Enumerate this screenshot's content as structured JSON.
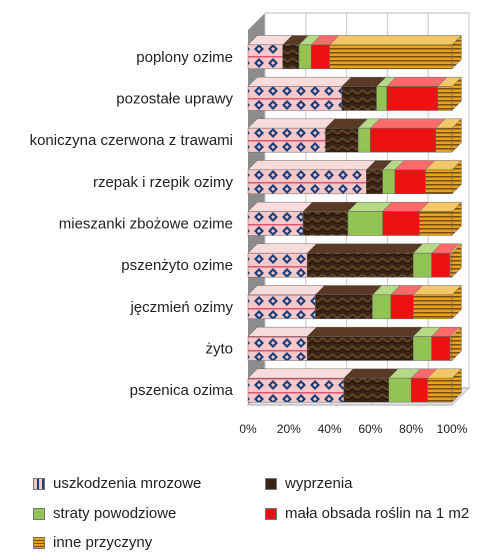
{
  "chart_data": {
    "type": "bar",
    "stacked": true,
    "orientation": "horizontal",
    "normalized": "percent",
    "categories": [
      "pszenica ozima",
      "żyto",
      "jęczmień ozimy",
      "pszenżyto ozime",
      "mieszanki zbożowe ozime",
      "rzepak i rzepik ozimy",
      "koniczyna czerwona z trawami",
      "pozostałe uprawy",
      "poplony ozime"
    ],
    "series": [
      {
        "name": "uszkodzenia mrozowe",
        "color": "#f2b8b8",
        "values": [
          47,
          29,
          33,
          29,
          27,
          58,
          38,
          46,
          17
        ]
      },
      {
        "name": "wyprzenia",
        "color": "#3a2414",
        "values": [
          22,
          52,
          28,
          52,
          22,
          8,
          16,
          17,
          8
        ]
      },
      {
        "name": "straty powodziowe",
        "color": "#92c353",
        "values": [
          11,
          9,
          9,
          9,
          17,
          6,
          6,
          5,
          6
        ]
      },
      {
        "name": "mała obsada roślin  na 1 m2",
        "color": "#ee1111",
        "values": [
          8,
          9,
          11,
          9,
          18,
          15,
          32,
          25,
          9
        ]
      },
      {
        "name": "inne przyczyny",
        "color": "#e8a317",
        "values": [
          12,
          1,
          19,
          1,
          16,
          13,
          8,
          7,
          60
        ]
      }
    ],
    "xlim": [
      0,
      100
    ],
    "xticks": [
      "0%",
      "20%",
      "40%",
      "60%",
      "80%",
      "100%"
    ],
    "legend_position": "bottom",
    "three_d": true,
    "gridlines": true
  }
}
